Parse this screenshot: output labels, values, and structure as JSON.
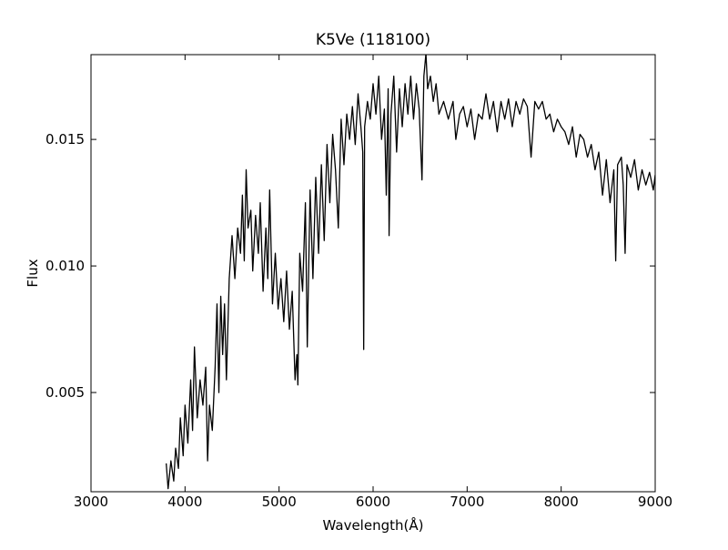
{
  "chart_data": {
    "type": "line",
    "title": "K5Ve (118100)",
    "x_label": "Wavelength(Å)",
    "y_label": "Flux",
    "color": "#000000",
    "x": [
      3800,
      3820,
      3850,
      3880,
      3900,
      3930,
      3950,
      3980,
      4000,
      4030,
      4060,
      4080,
      4100,
      4130,
      4160,
      4190,
      4220,
      4240,
      4260,
      4290,
      4320,
      4340,
      4360,
      4380,
      4400,
      4420,
      4440,
      4470,
      4500,
      4530,
      4560,
      4590,
      4610,
      4630,
      4650,
      4670,
      4700,
      4720,
      4750,
      4780,
      4800,
      4830,
      4860,
      4880,
      4900,
      4930,
      4960,
      4990,
      5020,
      5050,
      5080,
      5110,
      5140,
      5170,
      5190,
      5200,
      5220,
      5250,
      5280,
      5300,
      5330,
      5360,
      5390,
      5420,
      5450,
      5480,
      5510,
      5540,
      5570,
      5600,
      5630,
      5660,
      5690,
      5720,
      5750,
      5780,
      5810,
      5840,
      5870,
      5890,
      5900,
      5910,
      5940,
      5970,
      6000,
      6030,
      6060,
      6090,
      6120,
      6140,
      6160,
      6170,
      6190,
      6220,
      6250,
      6280,
      6310,
      6340,
      6370,
      6400,
      6430,
      6460,
      6490,
      6520,
      6540,
      6562,
      6580,
      6610,
      6640,
      6670,
      6700,
      6750,
      6800,
      6850,
      6880,
      6920,
      6960,
      7000,
      7040,
      7080,
      7120,
      7160,
      7200,
      7240,
      7280,
      7320,
      7360,
      7400,
      7440,
      7480,
      7520,
      7560,
      7600,
      7640,
      7680,
      7720,
      7760,
      7800,
      7840,
      7880,
      7920,
      7960,
      8000,
      8040,
      8080,
      8120,
      8160,
      8200,
      8240,
      8280,
      8320,
      8360,
      8400,
      8440,
      8480,
      8520,
      8560,
      8580,
      8600,
      8640,
      8660,
      8680,
      8700,
      8740,
      8780,
      8820,
      8860,
      8900,
      8940,
      8980,
      9000
    ],
    "values": [
      0.0022,
      0.0012,
      0.0023,
      0.0015,
      0.0028,
      0.002,
      0.004,
      0.0025,
      0.0045,
      0.003,
      0.0055,
      0.0035,
      0.0068,
      0.004,
      0.0055,
      0.0045,
      0.006,
      0.0023,
      0.0045,
      0.0035,
      0.006,
      0.0085,
      0.005,
      0.0088,
      0.0065,
      0.0085,
      0.0055,
      0.0095,
      0.0112,
      0.0095,
      0.0115,
      0.0105,
      0.0128,
      0.0102,
      0.0138,
      0.0115,
      0.0122,
      0.0098,
      0.012,
      0.0105,
      0.0125,
      0.009,
      0.0115,
      0.0095,
      0.013,
      0.0085,
      0.0105,
      0.0083,
      0.0095,
      0.0078,
      0.0098,
      0.0075,
      0.009,
      0.0055,
      0.0065,
      0.0053,
      0.0105,
      0.009,
      0.0125,
      0.0068,
      0.013,
      0.0095,
      0.0135,
      0.0105,
      0.014,
      0.011,
      0.0148,
      0.0125,
      0.0152,
      0.0138,
      0.0115,
      0.0158,
      0.014,
      0.016,
      0.015,
      0.0163,
      0.0148,
      0.0168,
      0.0155,
      0.0145,
      0.0067,
      0.0155,
      0.0165,
      0.0158,
      0.0172,
      0.016,
      0.0175,
      0.015,
      0.0162,
      0.0128,
      0.017,
      0.0112,
      0.016,
      0.0175,
      0.0145,
      0.017,
      0.0155,
      0.0172,
      0.016,
      0.0175,
      0.0158,
      0.0172,
      0.0162,
      0.0134,
      0.0175,
      0.0184,
      0.017,
      0.0175,
      0.0165,
      0.0172,
      0.016,
      0.0165,
      0.0158,
      0.0165,
      0.015,
      0.016,
      0.0163,
      0.0155,
      0.0162,
      0.015,
      0.016,
      0.0158,
      0.0168,
      0.0158,
      0.0165,
      0.0153,
      0.0165,
      0.0158,
      0.0166,
      0.0155,
      0.0165,
      0.016,
      0.0166,
      0.0163,
      0.0143,
      0.0165,
      0.0162,
      0.0165,
      0.0158,
      0.016,
      0.0153,
      0.0158,
      0.0155,
      0.0153,
      0.0148,
      0.0155,
      0.0143,
      0.0152,
      0.015,
      0.0143,
      0.0148,
      0.0138,
      0.0145,
      0.0128,
      0.0142,
      0.0125,
      0.0138,
      0.0102,
      0.014,
      0.0143,
      0.0132,
      0.0105,
      0.014,
      0.0135,
      0.0142,
      0.013,
      0.0138,
      0.0132,
      0.0137,
      0.013,
      0.0136
    ],
    "xlim": [
      3000,
      9000
    ],
    "xticks": [
      3000,
      4000,
      5000,
      6000,
      7000,
      8000,
      9000
    ],
    "ylim": [
      0.00108,
      0.01835
    ],
    "yticks": [
      0.005,
      {
        "value": 0.01,
        "label": "0.010"
      },
      0.015
    ]
  }
}
